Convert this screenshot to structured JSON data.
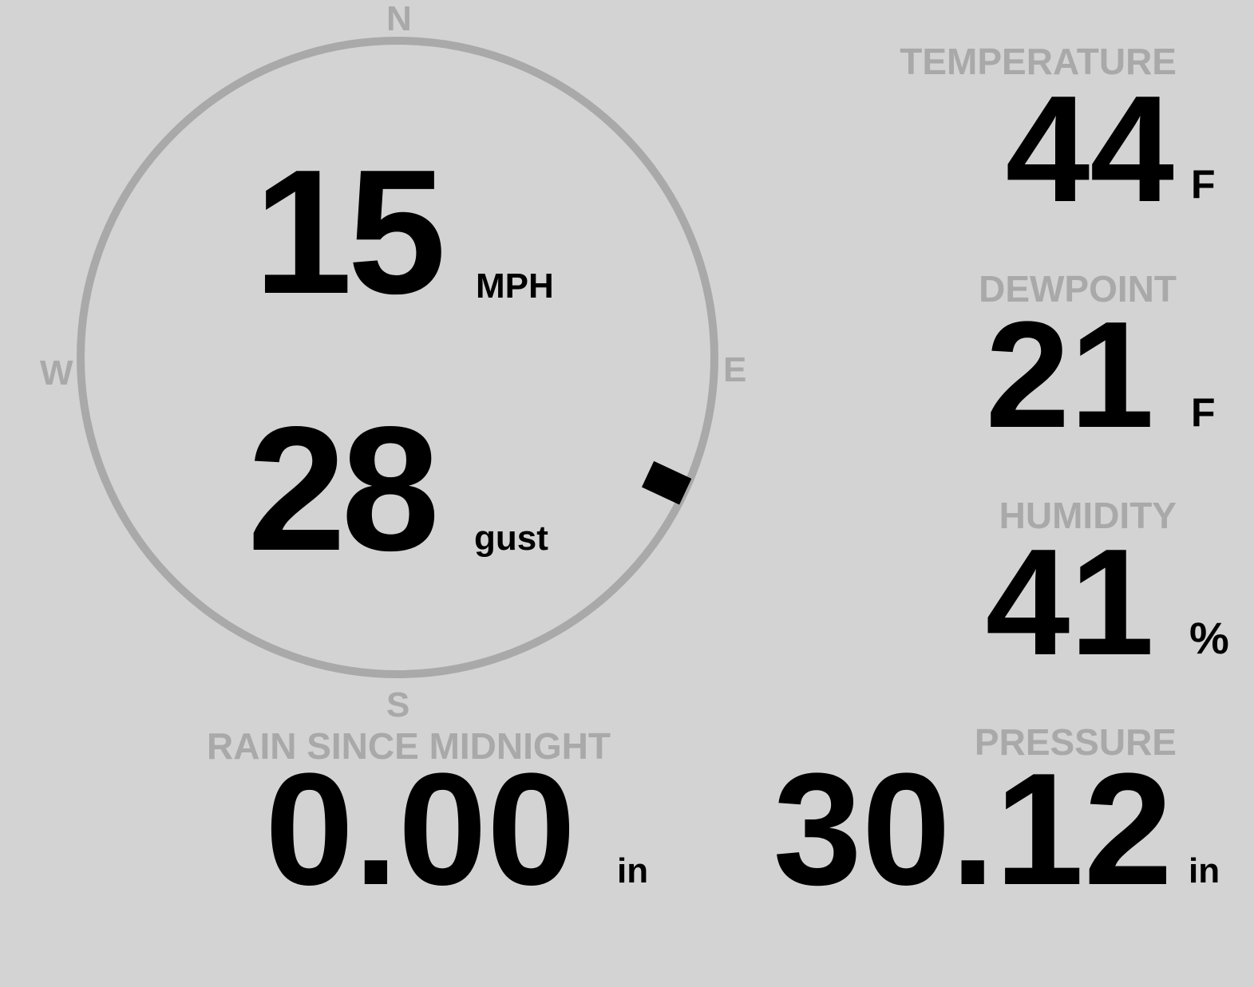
{
  "colors": {
    "background": "#d3d3d3",
    "label": "#a9a9a9",
    "value": "#000000"
  },
  "wind": {
    "compass": {
      "north": "N",
      "south": "S",
      "east": "E",
      "west": "W"
    },
    "speed": "15",
    "speed_unit": "MPH",
    "gust": "28",
    "gust_label": "gust",
    "direction_degrees": 115
  },
  "temperature": {
    "label": "TEMPERATURE",
    "value": "44",
    "unit": "F"
  },
  "dewpoint": {
    "label": "DEWPOINT",
    "value": "21",
    "unit": "F"
  },
  "humidity": {
    "label": "HUMIDITY",
    "value": "41",
    "unit": "%"
  },
  "rain": {
    "label": "RAIN SINCE MIDNIGHT",
    "value": "0.00",
    "unit": "in"
  },
  "pressure": {
    "label": "PRESSURE",
    "value": "30.12",
    "unit": "in"
  }
}
